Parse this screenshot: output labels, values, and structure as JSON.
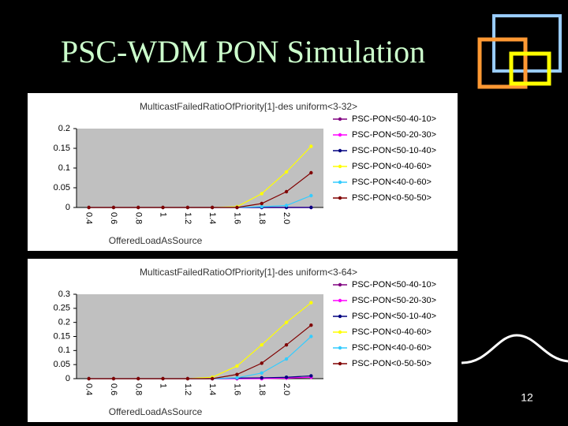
{
  "slide": {
    "title": "PSC-WDM PON Simulation",
    "page_number": "12"
  },
  "chart_data": [
    {
      "type": "line",
      "title": "MulticastFailedRatioOfPriority[1]-des  uniform<3-32>",
      "x_label": "OfferedLoadAsSource",
      "categories": [
        "0.4",
        "0.6",
        "0.8",
        "1",
        "1.2",
        "1.4",
        "1.6",
        "1.8",
        "2.0",
        null
      ],
      "ylim": [
        0,
        0.2
      ],
      "yticks": [
        0,
        0.05,
        0.1,
        0.15,
        0.2
      ],
      "grid": false,
      "series": [
        {
          "name": "PSC-PON<50-40-10>",
          "color": "#800080",
          "values": [
            0,
            0,
            0,
            0,
            0,
            0,
            0,
            0,
            0,
            0
          ]
        },
        {
          "name": "PSC-PON<50-20-30>",
          "color": "#ff00ff",
          "values": [
            0,
            0,
            0,
            0,
            0,
            0,
            0,
            0,
            0,
            0
          ]
        },
        {
          "name": "PSC-PON<50-10-40>",
          "color": "#000080",
          "values": [
            0,
            0,
            0,
            0,
            0,
            0,
            0,
            0,
            0,
            0
          ]
        },
        {
          "name": "PSC-PON<0-40-60>",
          "color": "#ffff00",
          "values": [
            0,
            0,
            0,
            0,
            0,
            0,
            0.002,
            0.035,
            0.09,
            0.155
          ]
        },
        {
          "name": "PSC-PON<40-0-60>",
          "color": "#33ccff",
          "values": [
            0,
            0,
            0,
            0,
            0,
            0,
            0,
            0.002,
            0.005,
            0.03
          ]
        },
        {
          "name": "PSC-PON<0-50-50>",
          "color": "#800000",
          "values": [
            0,
            0,
            0,
            0,
            0,
            0,
            0,
            0.01,
            0.04,
            0.088
          ]
        }
      ]
    },
    {
      "type": "line",
      "title": "MulticastFailedRatioOfPriority[1]-des  uniform<3-64>",
      "x_label": "OfferedLoadAsSource",
      "categories": [
        "0.4",
        "0.6",
        "0.8",
        "1",
        "1.2",
        "1.4",
        "1.6",
        "1.8",
        "2.0",
        null
      ],
      "ylim": [
        0,
        0.3
      ],
      "yticks": [
        0,
        0.05,
        0.1,
        0.15,
        0.2,
        0.25,
        0.3
      ],
      "grid": false,
      "series": [
        {
          "name": "PSC-PON<50-40-10>",
          "color": "#800080",
          "values": [
            0,
            0,
            0,
            0,
            0,
            0,
            0,
            0,
            0.002,
            0.005
          ]
        },
        {
          "name": "PSC-PON<50-20-30>",
          "color": "#ff00ff",
          "values": [
            0,
            0,
            0,
            0,
            0,
            0,
            0,
            0,
            0.002,
            0.005
          ]
        },
        {
          "name": "PSC-PON<50-10-40>",
          "color": "#000080",
          "values": [
            0,
            0,
            0,
            0,
            0,
            0,
            0.002,
            0.003,
            0.005,
            0.01
          ]
        },
        {
          "name": "PSC-PON<0-40-60>",
          "color": "#ffff00",
          "values": [
            0,
            0,
            0,
            0,
            0,
            0.005,
            0.045,
            0.12,
            0.2,
            0.27
          ]
        },
        {
          "name": "PSC-PON<40-0-60>",
          "color": "#33ccff",
          "values": [
            0,
            0,
            0,
            0,
            0,
            0,
            0.003,
            0.02,
            0.07,
            0.15
          ]
        },
        {
          "name": "PSC-PON<0-50-50>",
          "color": "#800000",
          "values": [
            0,
            0,
            0,
            0,
            0,
            0,
            0.015,
            0.055,
            0.12,
            0.19
          ]
        }
      ]
    }
  ]
}
